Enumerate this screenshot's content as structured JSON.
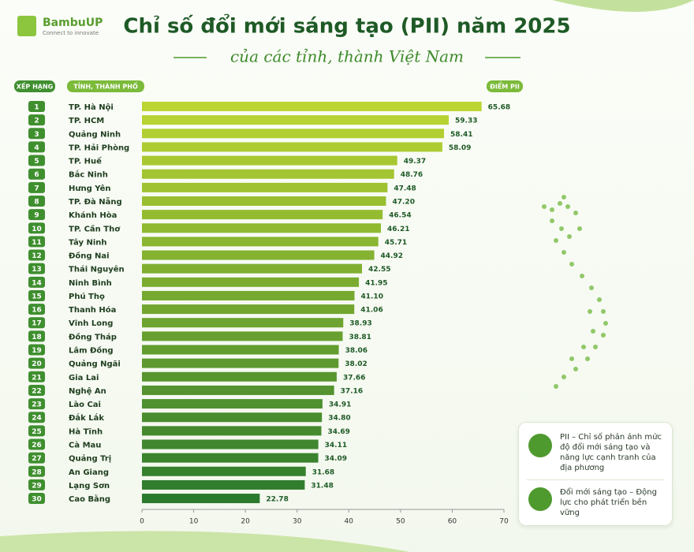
{
  "logo": {
    "name": "BambuUP",
    "tagline": "Connect to innovate"
  },
  "chart_data": {
    "type": "bar",
    "orientation": "horizontal",
    "title": "Chỉ số đổi mới sáng tạo (PII) năm 2025",
    "subtitle": "của các tỉnh, thành Việt Nam",
    "rank_header": "XẾP HẠNG",
    "category_header": "TỈNH, THÀNH PHỐ",
    "value_header": "ĐIỂM PII",
    "ranks": [
      1,
      2,
      3,
      4,
      5,
      6,
      7,
      8,
      9,
      10,
      11,
      12,
      13,
      14,
      15,
      16,
      17,
      18,
      19,
      20,
      21,
      22,
      23,
      24,
      25,
      26,
      27,
      28,
      29,
      30
    ],
    "categories": [
      "TP. Hà Nội",
      "TP. HCM",
      "Quảng Ninh",
      "TP. Hải Phòng",
      "TP. Huế",
      "Bắc Ninh",
      "Hưng Yên",
      "TP. Đà Nẵng",
      "Khánh Hòa",
      "TP. Cần Thơ",
      "Tây Ninh",
      "Đồng Nai",
      "Thái Nguyên",
      "Ninh Bình",
      "Phú Thọ",
      "Thanh Hóa",
      "Vĩnh Long",
      "Đồng Tháp",
      "Lâm Đồng",
      "Quảng Ngãi",
      "Gia Lai",
      "Nghệ An",
      "Lào Cai",
      "Đắk Lắk",
      "Hà Tĩnh",
      "Cà Mau",
      "Quảng Trị",
      "An Giang",
      "Lạng Sơn",
      "Cao Bằng"
    ],
    "values": [
      65.68,
      59.33,
      58.41,
      58.09,
      49.37,
      48.76,
      47.48,
      47.2,
      46.54,
      46.21,
      45.71,
      44.92,
      42.55,
      41.95,
      41.1,
      41.06,
      38.93,
      38.81,
      38.06,
      38.02,
      37.66,
      37.16,
      34.91,
      34.8,
      34.69,
      34.11,
      34.09,
      31.68,
      31.48,
      22.78
    ],
    "value_labels": [
      "65.68",
      "59.33",
      "58.41",
      "58.09",
      "49.37",
      "48.76",
      "47.48",
      "47.20",
      "46.54",
      "46.21",
      "45.71",
      "44.92",
      "42.55",
      "41.95",
      "41.10",
      "41.06",
      "38.93",
      "38.81",
      "38.06",
      "38.02",
      "37.66",
      "37.16",
      "34.91",
      "34.80",
      "34.69",
      "34.11",
      "34.09",
      "31.68",
      "31.48",
      "22.78"
    ],
    "colors": [
      "#bcd532",
      "#2c7a2e"
    ],
    "xlim": [
      0,
      70
    ],
    "xticks": [
      0,
      10,
      20,
      30,
      40,
      50,
      60,
      70
    ]
  },
  "info": [
    {
      "text": "PII – Chỉ số phản ánh mức độ đổi mới sáng tạo và năng lực cạnh tranh của địa phương"
    },
    {
      "text": "Đổi mới sáng tạo – Động lực cho phát triển bền vững"
    }
  ]
}
